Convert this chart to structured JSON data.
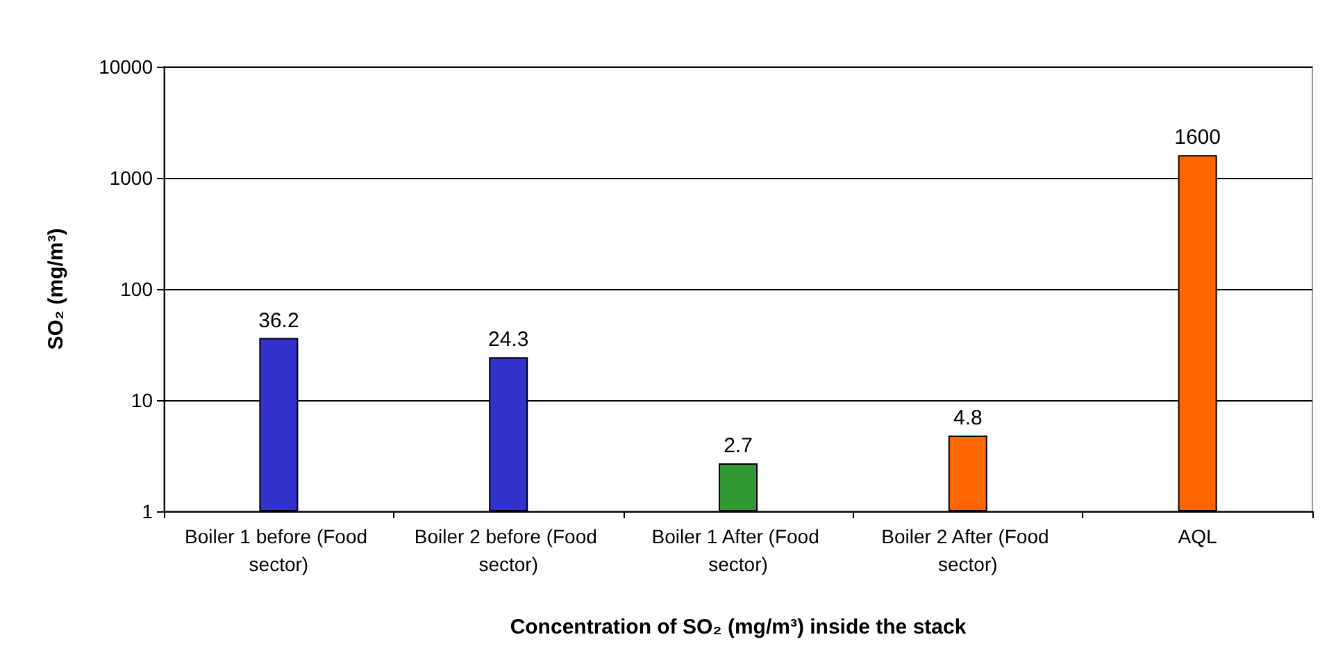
{
  "chart_data": {
    "type": "bar",
    "xlabel": "Concentration of SO₂ (mg/m³) inside the stack",
    "ylabel": "SO₂ (mg/m³)",
    "categories": [
      "Boiler 1 before (Food sector)",
      "Boiler 2 before (Food sector)",
      "Boiler 1 After (Food sector)",
      "Boiler 2 After (Food sector)",
      "AQL"
    ],
    "values": [
      36.2,
      24.3,
      2.7,
      4.8,
      1600
    ],
    "colors": [
      "#3333cc",
      "#3333cc",
      "#339933",
      "#ff6600",
      "#ff6600"
    ],
    "log": "y",
    "ylim": [
      1,
      10000
    ],
    "yticks": [
      1,
      10,
      100,
      1000,
      10000
    ],
    "grid": "y",
    "data_labels": true
  }
}
